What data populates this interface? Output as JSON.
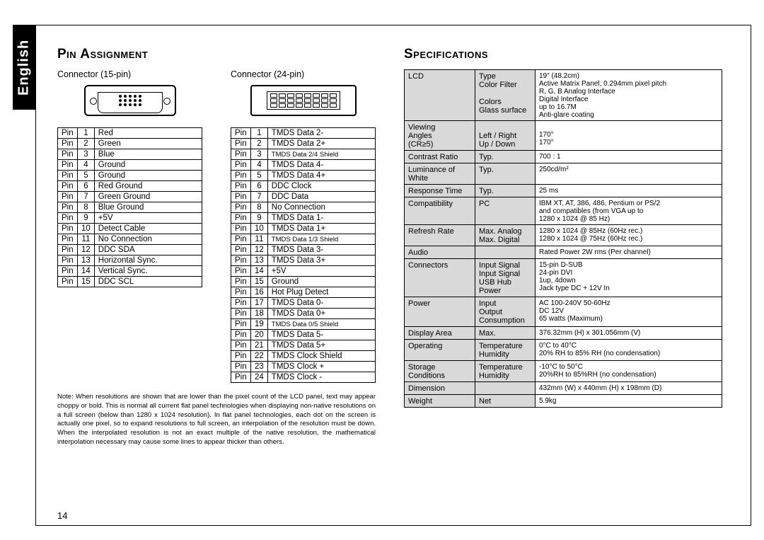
{
  "side_tab": "English",
  "left": {
    "title": "Pin Assignment",
    "conn15_title": "Connector (15-pin)",
    "conn24_title": "Connector (24-pin)",
    "pins15": [
      [
        "Pin",
        "1",
        "Red"
      ],
      [
        "Pin",
        "2",
        "Green"
      ],
      [
        "Pin",
        "3",
        "Blue"
      ],
      [
        "Pin",
        "4",
        "Ground"
      ],
      [
        "Pin",
        "5",
        "Ground"
      ],
      [
        "Pin",
        "6",
        "Red Ground"
      ],
      [
        "Pin",
        "7",
        "Green Ground"
      ],
      [
        "Pin",
        "8",
        "Blue Ground"
      ],
      [
        "Pin",
        "9",
        "+5V"
      ],
      [
        "Pin",
        "10",
        "Detect Cable"
      ],
      [
        "Pin",
        "11",
        "No Connection"
      ],
      [
        "Pin",
        "12",
        "DDC SDA"
      ],
      [
        "Pin",
        "13",
        "Horizontal Sync."
      ],
      [
        "Pin",
        "14",
        "Vertical Sync."
      ],
      [
        "Pin",
        "15",
        "DDC SCL"
      ]
    ],
    "pins24": [
      [
        "Pin",
        "1",
        "TMDS Data 2-"
      ],
      [
        "Pin",
        "2",
        "TMDS Data 2+"
      ],
      [
        "Pin",
        "3",
        "TMDS Data 2/4 Shield"
      ],
      [
        "Pin",
        "4",
        "TMDS Data 4-"
      ],
      [
        "Pin",
        "5",
        "TMDS Data 4+"
      ],
      [
        "Pin",
        "6",
        "DDC Clock"
      ],
      [
        "Pin",
        "7",
        "DDC Data"
      ],
      [
        "Pin",
        "8",
        "No Connection"
      ],
      [
        "Pin",
        "9",
        "TMDS Data 1-"
      ],
      [
        "Pin",
        "10",
        "TMDS Data 1+"
      ],
      [
        "Pin",
        "11",
        "TMDS Data 1/3 Shield"
      ],
      [
        "Pin",
        "12",
        "TMDS Data 3-"
      ],
      [
        "Pin",
        "13",
        "TMDS Data 3+"
      ],
      [
        "Pin",
        "14",
        "+5V"
      ],
      [
        "Pin",
        "15",
        "Ground"
      ],
      [
        "Pin",
        "16",
        "Hot Plug Detect"
      ],
      [
        "Pin",
        "17",
        "TMDS Data 0-"
      ],
      [
        "Pin",
        "18",
        "TMDS Data 0+"
      ],
      [
        "Pin",
        "19",
        "TMDS Data 0/5 Shield"
      ],
      [
        "Pin",
        "20",
        "TMDS Data 5-"
      ],
      [
        "Pin",
        "21",
        "TMDS Data 5+"
      ],
      [
        "Pin",
        "22",
        "TMDS Clock Shield"
      ],
      [
        "Pin",
        "23",
        "TMDS Clock +"
      ],
      [
        "Pin",
        "24",
        "TMDS Clock -"
      ]
    ],
    "note": "Note: When resolutions are shown that are lower than the pixel count of the LCD panel, text may appear choppy or bold. This is normal all current flat panel technologies when displaying non-native resolutions on a full screen (below than 1280 x 1024 resolution). In flat panel technologies, each dot on the screen is actually one pixel, so to expand resolutions to full screen, an interpolation of the resolution must be down. When the interpolated resolution is not an exact multiple of the native resolution, the mathematical interpolation necessary may cause some lines to appear thicker than others.",
    "page_number": "14"
  },
  "right": {
    "title": "Specifications",
    "rows": [
      {
        "c1": "LCD",
        "c2": "Type\nColor Filter\n\nColors\nGlass surface",
        "c3": "19\" (48.2cm)\nActive Matrix Panel, 0.294mm pixel pitch\nR, G, B Analog Interface\nDigital Interface\nup to 16.7M\nAnti-glare coating"
      },
      {
        "c1": "Viewing\nAngles\n(CR≥5)",
        "c2": "\nLeft / Right\nUp / Down",
        "c3": "\n170°\n170°"
      },
      {
        "c1": "Contrast Ratio",
        "c2": "Typ.",
        "c3": "700 : 1"
      },
      {
        "c1": "Luminance of White",
        "c2": "Typ.",
        "c3": "250cd/m²"
      },
      {
        "c1": "Response Time",
        "c2": "Typ.",
        "c3": "25 ms"
      },
      {
        "c1": "Compatibility",
        "c2": "PC",
        "c3": "IBM XT, AT, 386, 486, Pentium or PS/2\nand compatibles (from VGA up to\n1280 x 1024 @ 85 Hz)"
      },
      {
        "c1": "Refresh Rate",
        "c2": "Max. Analog\nMax. Digital",
        "c3": "1280 x 1024 @ 85Hz (60Hz rec.)\n1280 x 1024 @ 75Hz (60Hz rec.)"
      },
      {
        "c1": "Audio",
        "c2": "",
        "c3": "Rated Power 2W rms (Per channel)"
      },
      {
        "c1": "Connectors",
        "c2": "Input Signal\nInput Signal\nUSB Hub\nPower",
        "c3": "15-pin D-SUB\n24-pin DVI\n1up, 4down\nJack type DC + 12V In"
      },
      {
        "c1": "Power",
        "c2": "Input\nOutput\nConsumption",
        "c3": "AC   100-240V   50-60Hz\nDC   12V\n65 watts (Maximum)"
      },
      {
        "c1": "Display Area",
        "c2": "Max.",
        "c3": "376.32mm (H) x 301.056mm (V)"
      },
      {
        "c1": "Operating",
        "c2": "Temperature\nHumidity",
        "c3": "0°C to 40°C\n20% RH to 85% RH (no condensation)"
      },
      {
        "c1": "Storage\nConditions",
        "c2": "Temperature\nHumidity",
        "c3": "-10°C to 50°C\n20%RH to 85%RH (no condensation)"
      },
      {
        "c1": "Dimension",
        "c2": "",
        "c3": "432mm (W) x 440mm (H) x 198mm (D)"
      },
      {
        "c1": "Weight",
        "c2": "Net",
        "c3": "5.9kg"
      }
    ]
  }
}
